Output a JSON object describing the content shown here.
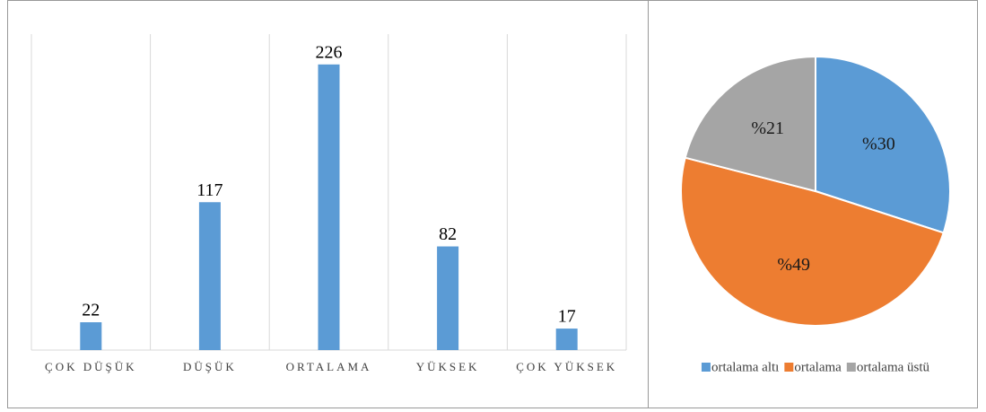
{
  "chart_data": [
    {
      "type": "bar",
      "categories": [
        "ÇOK DÜŞÜK",
        "DÜŞÜK",
        "ORTALAMA",
        "YÜKSEK",
        "ÇOK YÜKSEK"
      ],
      "values": [
        22,
        117,
        226,
        82,
        17
      ],
      "color": "#5b9bd5",
      "ylim": [
        0,
        250
      ]
    },
    {
      "type": "pie",
      "categories": [
        "ortalama altı",
        "ortalama",
        "ortalama üstü"
      ],
      "values": [
        30,
        49,
        21
      ],
      "value_labels": [
        "%30",
        "%49",
        "%21"
      ],
      "colors": [
        "#5b9bd5",
        "#ed7d31",
        "#a5a5a5"
      ],
      "legend": "bottom"
    }
  ]
}
